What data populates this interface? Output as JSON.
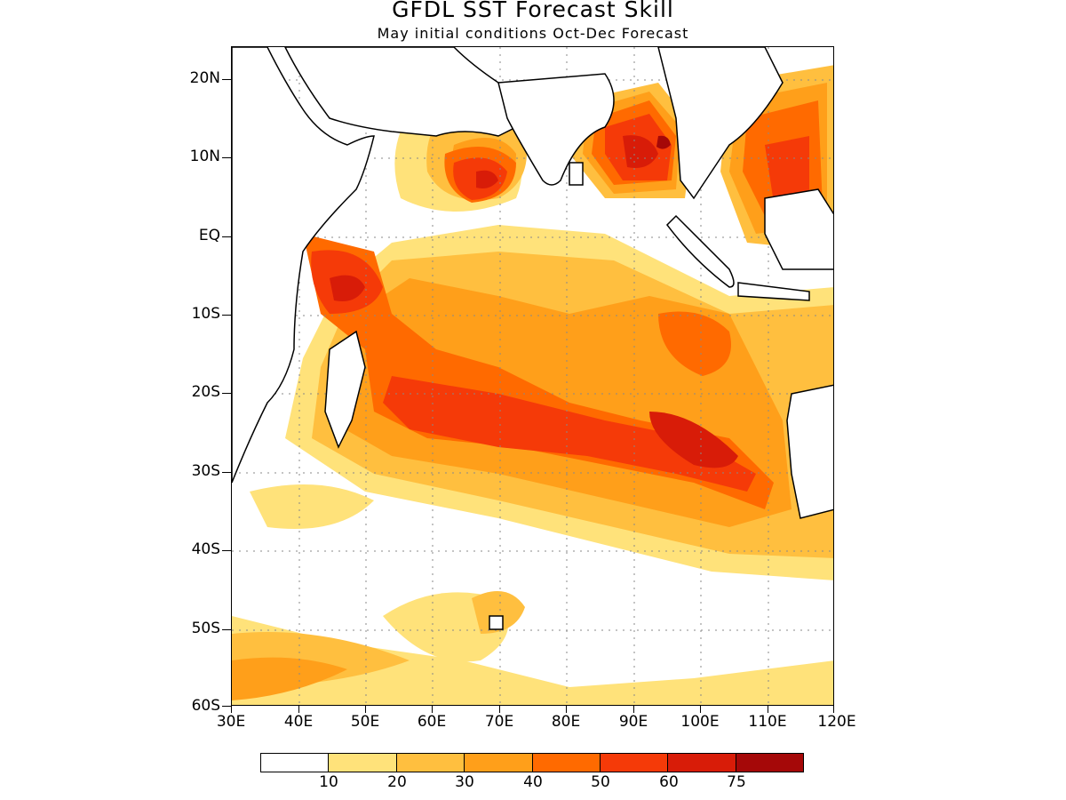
{
  "title": "GFDL SST Forecast Skill",
  "subtitle": "May initial conditions  Oct-Dec Forecast",
  "map": {
    "type": "filled contour map",
    "region": "Indian Ocean",
    "lon_range": [
      30,
      120
    ],
    "lat_range": [
      -60,
      24
    ],
    "grid": "dotted"
  },
  "axes": {
    "y_labels": [
      "20N",
      "10N",
      "EQ",
      "10S",
      "20S",
      "30S",
      "40S",
      "50S",
      "60S"
    ],
    "x_labels": [
      "30E",
      "40E",
      "50E",
      "60E",
      "70E",
      "80E",
      "90E",
      "100E",
      "110E",
      "120E"
    ]
  },
  "colorbar": {
    "colors": [
      "#ffffff",
      "#ffe27a",
      "#ffbf3f",
      "#ff9f1a",
      "#ff6a00",
      "#f53a08",
      "#d81c08",
      "#a50808"
    ],
    "labels": [
      "10",
      "20",
      "30",
      "40",
      "50",
      "60",
      "75"
    ]
  }
}
